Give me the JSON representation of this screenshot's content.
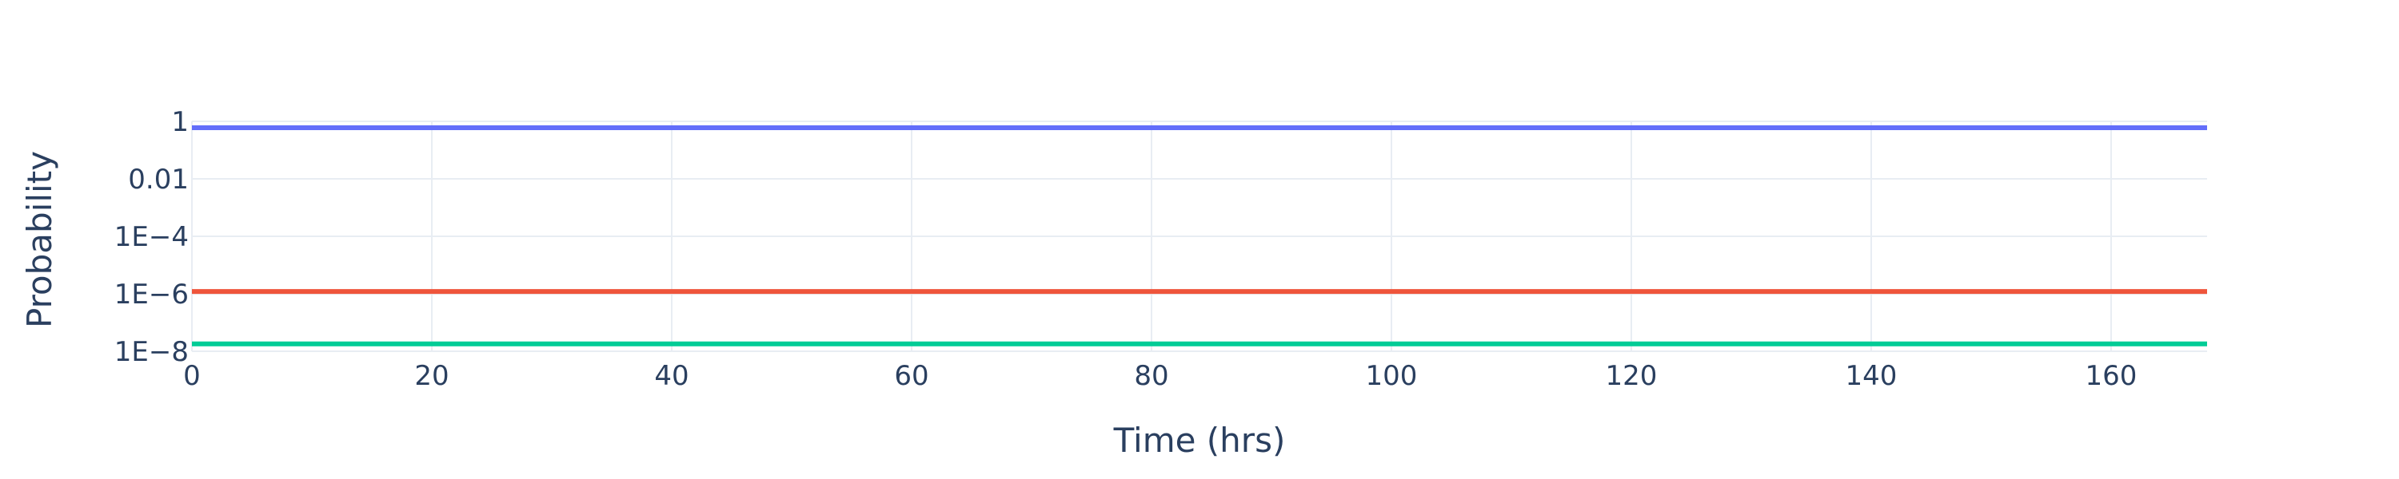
{
  "chart_data": {
    "type": "line",
    "title": "",
    "xlabel": "Time (hrs)",
    "ylabel": "Probability",
    "x_scale": "linear",
    "y_scale": "log",
    "xlim": [
      0,
      168
    ],
    "ylim": [
      1e-08,
      1
    ],
    "x_ticks": [
      0,
      20,
      40,
      60,
      80,
      100,
      120,
      140,
      160
    ],
    "x_tick_labels": [
      "0",
      "20",
      "40",
      "60",
      "80",
      "100",
      "120",
      "140",
      "160"
    ],
    "y_ticks": [
      1,
      0.01,
      0.0001,
      1e-06,
      1e-08
    ],
    "y_tick_labels": [
      "1",
      "0.01",
      "1E−4",
      "1E−6",
      "1E−8"
    ],
    "grid": true,
    "legend": "none",
    "series": [
      {
        "color": "#636efa",
        "x": [
          0,
          168
        ],
        "y": [
          0.6,
          0.6
        ]
      },
      {
        "color": "#ef553b",
        "x": [
          0,
          168
        ],
        "y": [
          1.2e-06,
          1.2e-06
        ]
      },
      {
        "color": "#00cc96",
        "x": [
          0,
          168
        ],
        "y": [
          1.8e-08,
          1.8e-08
        ]
      }
    ]
  }
}
